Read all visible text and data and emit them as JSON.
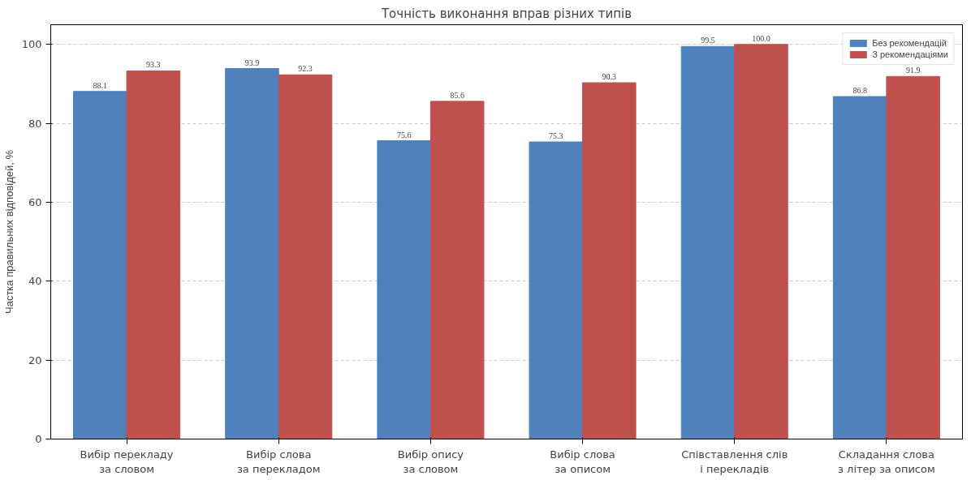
{
  "chart_data": {
    "type": "bar",
    "title": "Точність виконання вправ різних типів",
    "ylabel": "Частка правильних відповідей, %",
    "categories": [
      "Вибір перекладу\nза словом",
      "Вибір слова\nза перекладом",
      "Вибір опису\nза словом",
      "Вибір слова\nза описом",
      "Співставлення слів\nі перекладів",
      "Складання слова\nз літер за описом"
    ],
    "series": [
      {
        "name": "Без рекомендацій",
        "color": "#4f81bd",
        "values": [
          88.1,
          93.9,
          75.6,
          75.3,
          99.5,
          86.8
        ],
        "value_labels": [
          "88.1",
          "93.9",
          "75.6",
          "75.3",
          "99.5",
          "86.8"
        ]
      },
      {
        "name": "З рекомендаціями",
        "color": "#c0504d",
        "values": [
          93.3,
          92.3,
          85.6,
          90.3,
          100.0,
          91.9
        ],
        "value_labels": [
          "93.3",
          "92.3",
          "85.6",
          "90.3",
          "100.0",
          "91.9"
        ]
      }
    ],
    "ylim": [
      0,
      105
    ],
    "yticks": [
      0,
      20,
      40,
      60,
      80,
      100
    ],
    "grid": "y",
    "legend": "top right"
  }
}
